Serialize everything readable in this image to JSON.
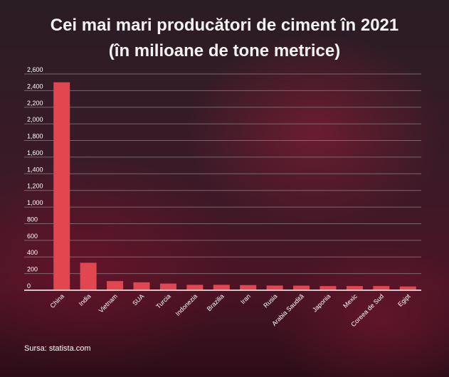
{
  "title_line1": "Cei mai mari producători de ciment în 2021",
  "title_line2": "(în milioane de tone metrice)",
  "source": "Sursa: statista.com",
  "colors": {
    "bar": "#e0474f",
    "grid": "#8a7a80",
    "axis": "#ffffff",
    "text": "#ffffff"
  },
  "chart_data": {
    "type": "bar",
    "title": "Cei mai mari producători de ciment în 2021 (în milioane de tone metrice)",
    "xlabel": "",
    "ylabel": "",
    "ylim": [
      0,
      2600
    ],
    "yticks": [
      0,
      200,
      400,
      600,
      800,
      1000,
      1200,
      1400,
      1600,
      1800,
      2000,
      2200,
      2400,
      2600
    ],
    "ytick_labels": [
      "0",
      "200",
      "400",
      "600",
      "800",
      "1,000",
      "1,200",
      "1,400",
      "1,600",
      "1,800",
      "2,000",
      "2,200",
      "2,400",
      "2,600"
    ],
    "grid": true,
    "legend": "none",
    "categories": [
      "China",
      "India",
      "Vietnam",
      "SUA",
      "Turcia",
      "Indonezia",
      "Brazilia",
      "Iran",
      "Rusia",
      "Arabia Saudită",
      "Japonia",
      "Mexic",
      "Coreea de Sud",
      "Egipt"
    ],
    "values": [
      2500,
      330,
      110,
      95,
      80,
      65,
      65,
      62,
      56,
      55,
      50,
      50,
      50,
      45
    ]
  }
}
